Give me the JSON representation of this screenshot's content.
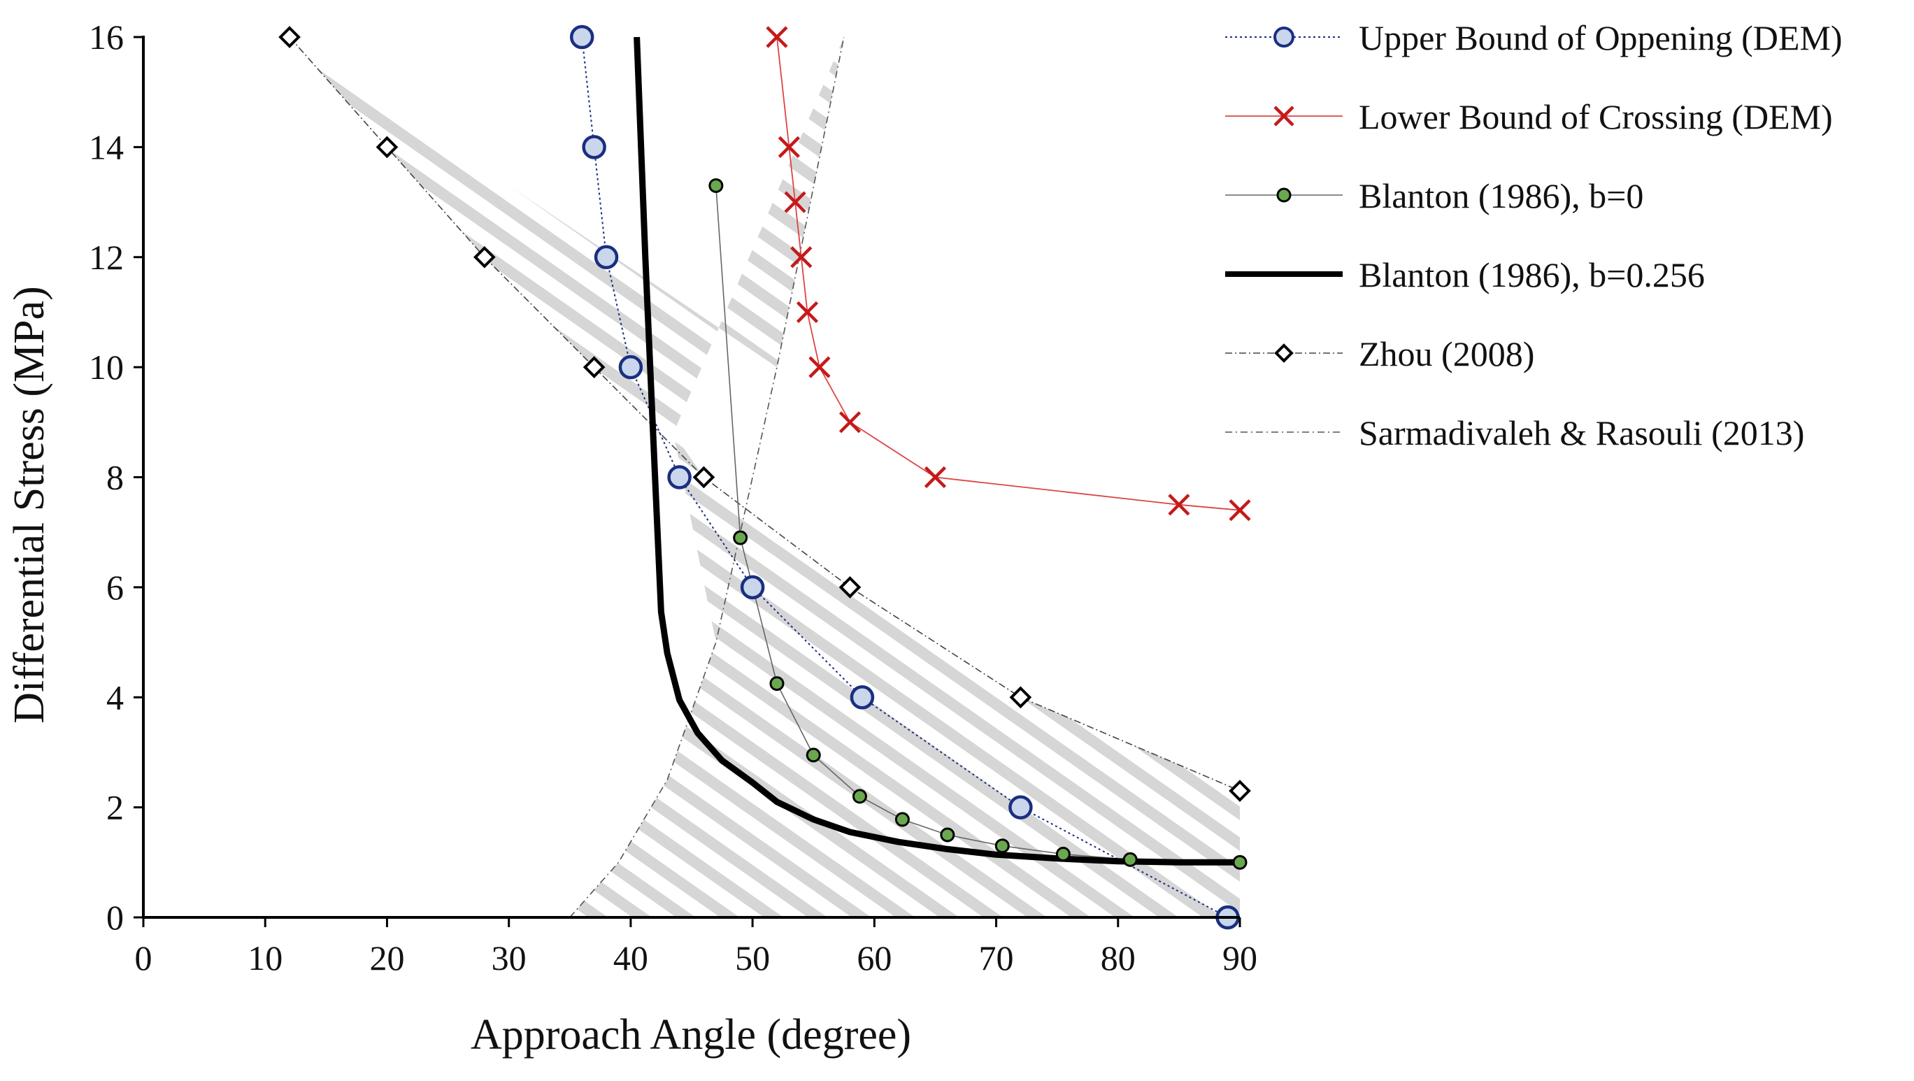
{
  "chart_data": {
    "type": "line",
    "title": "",
    "xlabel": "Approach Angle (degree)",
    "ylabel": "Differential Stress (MPa)",
    "xlim": [
      0,
      90
    ],
    "ylim": [
      0,
      16
    ],
    "xticks": [
      0,
      10,
      20,
      30,
      40,
      50,
      60,
      70,
      80,
      90
    ],
    "yticks": [
      0,
      2,
      4,
      6,
      8,
      10,
      12,
      14,
      16
    ],
    "grid": false,
    "legend_position": "right",
    "series": [
      {
        "name": "Upper Bound of Oppening (DEM)",
        "marker": "circle",
        "color": "#1a2f80",
        "x": [
          36,
          37,
          38,
          40,
          44,
          50,
          59,
          72,
          89
        ],
        "y": [
          16,
          14,
          12,
          10,
          8,
          6,
          4,
          2,
          0
        ]
      },
      {
        "name": "Lower Bound of Crossing (DEM)",
        "marker": "x",
        "color": "#c41a1a",
        "x": [
          52,
          53,
          53.5,
          54,
          54.5,
          55.5,
          58,
          65,
          85,
          90
        ],
        "y": [
          16,
          14,
          13,
          12,
          11,
          10,
          9,
          8,
          7.5,
          7.4
        ]
      },
      {
        "name": "Blanton (1986), b=0",
        "marker": "dot",
        "color": "#6aa84f",
        "x": [
          47,
          49,
          52,
          55,
          58.8,
          62.3,
          66,
          70.5,
          75.5,
          81,
          90
        ],
        "y": [
          13.3,
          6.9,
          4.25,
          2.95,
          2.2,
          1.78,
          1.5,
          1.3,
          1.15,
          1.05,
          1.0
        ]
      },
      {
        "name": "Blanton (1986), b=0.256",
        "marker": "none",
        "color": "#000000",
        "x": [
          40.5,
          41.2,
          42,
          42.5,
          43,
          44,
          45.5,
          47.5,
          50,
          52,
          55,
          58,
          62,
          66,
          70,
          75,
          80,
          85,
          90
        ],
        "y": [
          16,
          12,
          8,
          5.55,
          4.8,
          3.95,
          3.35,
          2.85,
          2.45,
          2.1,
          1.78,
          1.55,
          1.37,
          1.24,
          1.14,
          1.07,
          1.02,
          1.0,
          1.0
        ]
      },
      {
        "name": "Zhou (2008)",
        "marker": "diamond",
        "color": "#000000",
        "x": [
          12,
          20,
          28,
          37,
          46,
          58,
          72,
          90
        ],
        "y": [
          16,
          14,
          12,
          10,
          8,
          6,
          4,
          2.3
        ]
      },
      {
        "name": "Sarmadivaleh & Rasouli (2013)",
        "marker": "none",
        "color": "#555555",
        "x": [
          35,
          39,
          43,
          47,
          52,
          57.5
        ],
        "y": [
          0,
          1,
          2.5,
          5,
          10,
          16
        ]
      }
    ]
  }
}
